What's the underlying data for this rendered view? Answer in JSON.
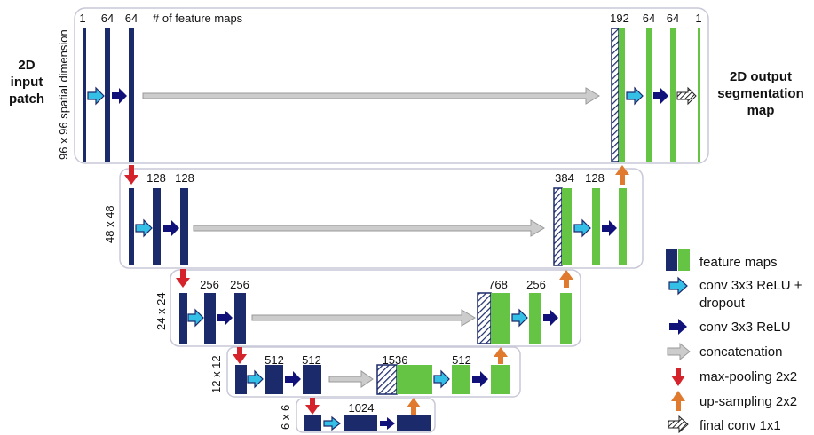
{
  "colors": {
    "navy": "#1b2a6b",
    "green": "#66c445",
    "conv_dropout_arrow": "#33bfe6",
    "conv_arrow": "#10127a",
    "concat_arrow": "#cccccc",
    "maxpool_arrow": "#d4232a",
    "upsample_arrow": "#e07a2e",
    "panel_border": "#c8c8d8"
  },
  "header": {
    "count_caption": "# of feature maps"
  },
  "left_labels": {
    "input": [
      "2D",
      "input",
      "patch"
    ]
  },
  "right_labels": {
    "output": [
      "2D output",
      "segmentation",
      "map"
    ]
  },
  "levels": [
    {
      "dim_label": "96 x 96 spatial dimension",
      "encoder_counts": [
        "1",
        "64",
        "64"
      ],
      "decoder_counts": [
        "192",
        "64",
        "64",
        "1"
      ]
    },
    {
      "dim_label": "48 x 48",
      "encoder_counts": [
        "128",
        "128"
      ],
      "decoder_counts": [
        "384",
        "128"
      ]
    },
    {
      "dim_label": "24 x 24",
      "encoder_counts": [
        "256",
        "256"
      ],
      "decoder_counts": [
        "768",
        "256"
      ]
    },
    {
      "dim_label": "12 x 12",
      "encoder_counts": [
        "512",
        "512"
      ],
      "decoder_counts": [
        "1536",
        "512"
      ]
    },
    {
      "dim_label": "6 x 6",
      "bottleneck_count": "1024"
    }
  ],
  "legend": {
    "feature_maps": "feature maps",
    "conv_dropout": [
      "conv 3x3 ReLU +",
      "dropout"
    ],
    "conv": "conv 3x3 ReLU",
    "concat": "concatenation",
    "maxpool": "max-pooling 2x2",
    "upsample": "up-sampling 2x2",
    "final": "final conv 1x1"
  }
}
